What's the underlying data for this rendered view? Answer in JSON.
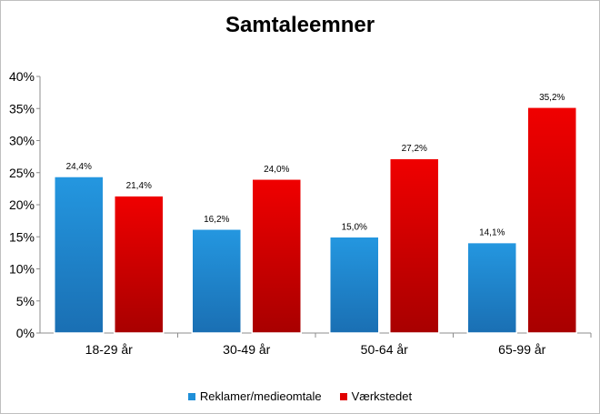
{
  "chart_data": {
    "type": "bar",
    "title": "Samtaleemner",
    "categories": [
      "18-29 år",
      "30-49 år",
      "50-64 år",
      "65-99 år"
    ],
    "series": [
      {
        "name": "Reklamer/medieomtale",
        "values": [
          24.4,
          16.2,
          15.0,
          14.1
        ],
        "labels": [
          "24,4%",
          "16,2%",
          "15,0%",
          "14,1%"
        ],
        "color": "#1f8fd8"
      },
      {
        "name": "Værkstedet",
        "values": [
          21.4,
          24.0,
          27.2,
          35.2
        ],
        "labels": [
          "21,4%",
          "24,0%",
          "27,2%",
          "35,2%"
        ],
        "color": "#e00000"
      }
    ],
    "y_ticks": [
      0,
      5,
      10,
      15,
      20,
      25,
      30,
      35,
      40
    ],
    "y_tick_labels": [
      "0%",
      "5%",
      "10%",
      "15%",
      "20%",
      "25%",
      "30%",
      "35%",
      "40%"
    ],
    "ylim": [
      0,
      40
    ],
    "xlabel": "",
    "ylabel": "",
    "grid": false,
    "legend_position": "bottom"
  }
}
